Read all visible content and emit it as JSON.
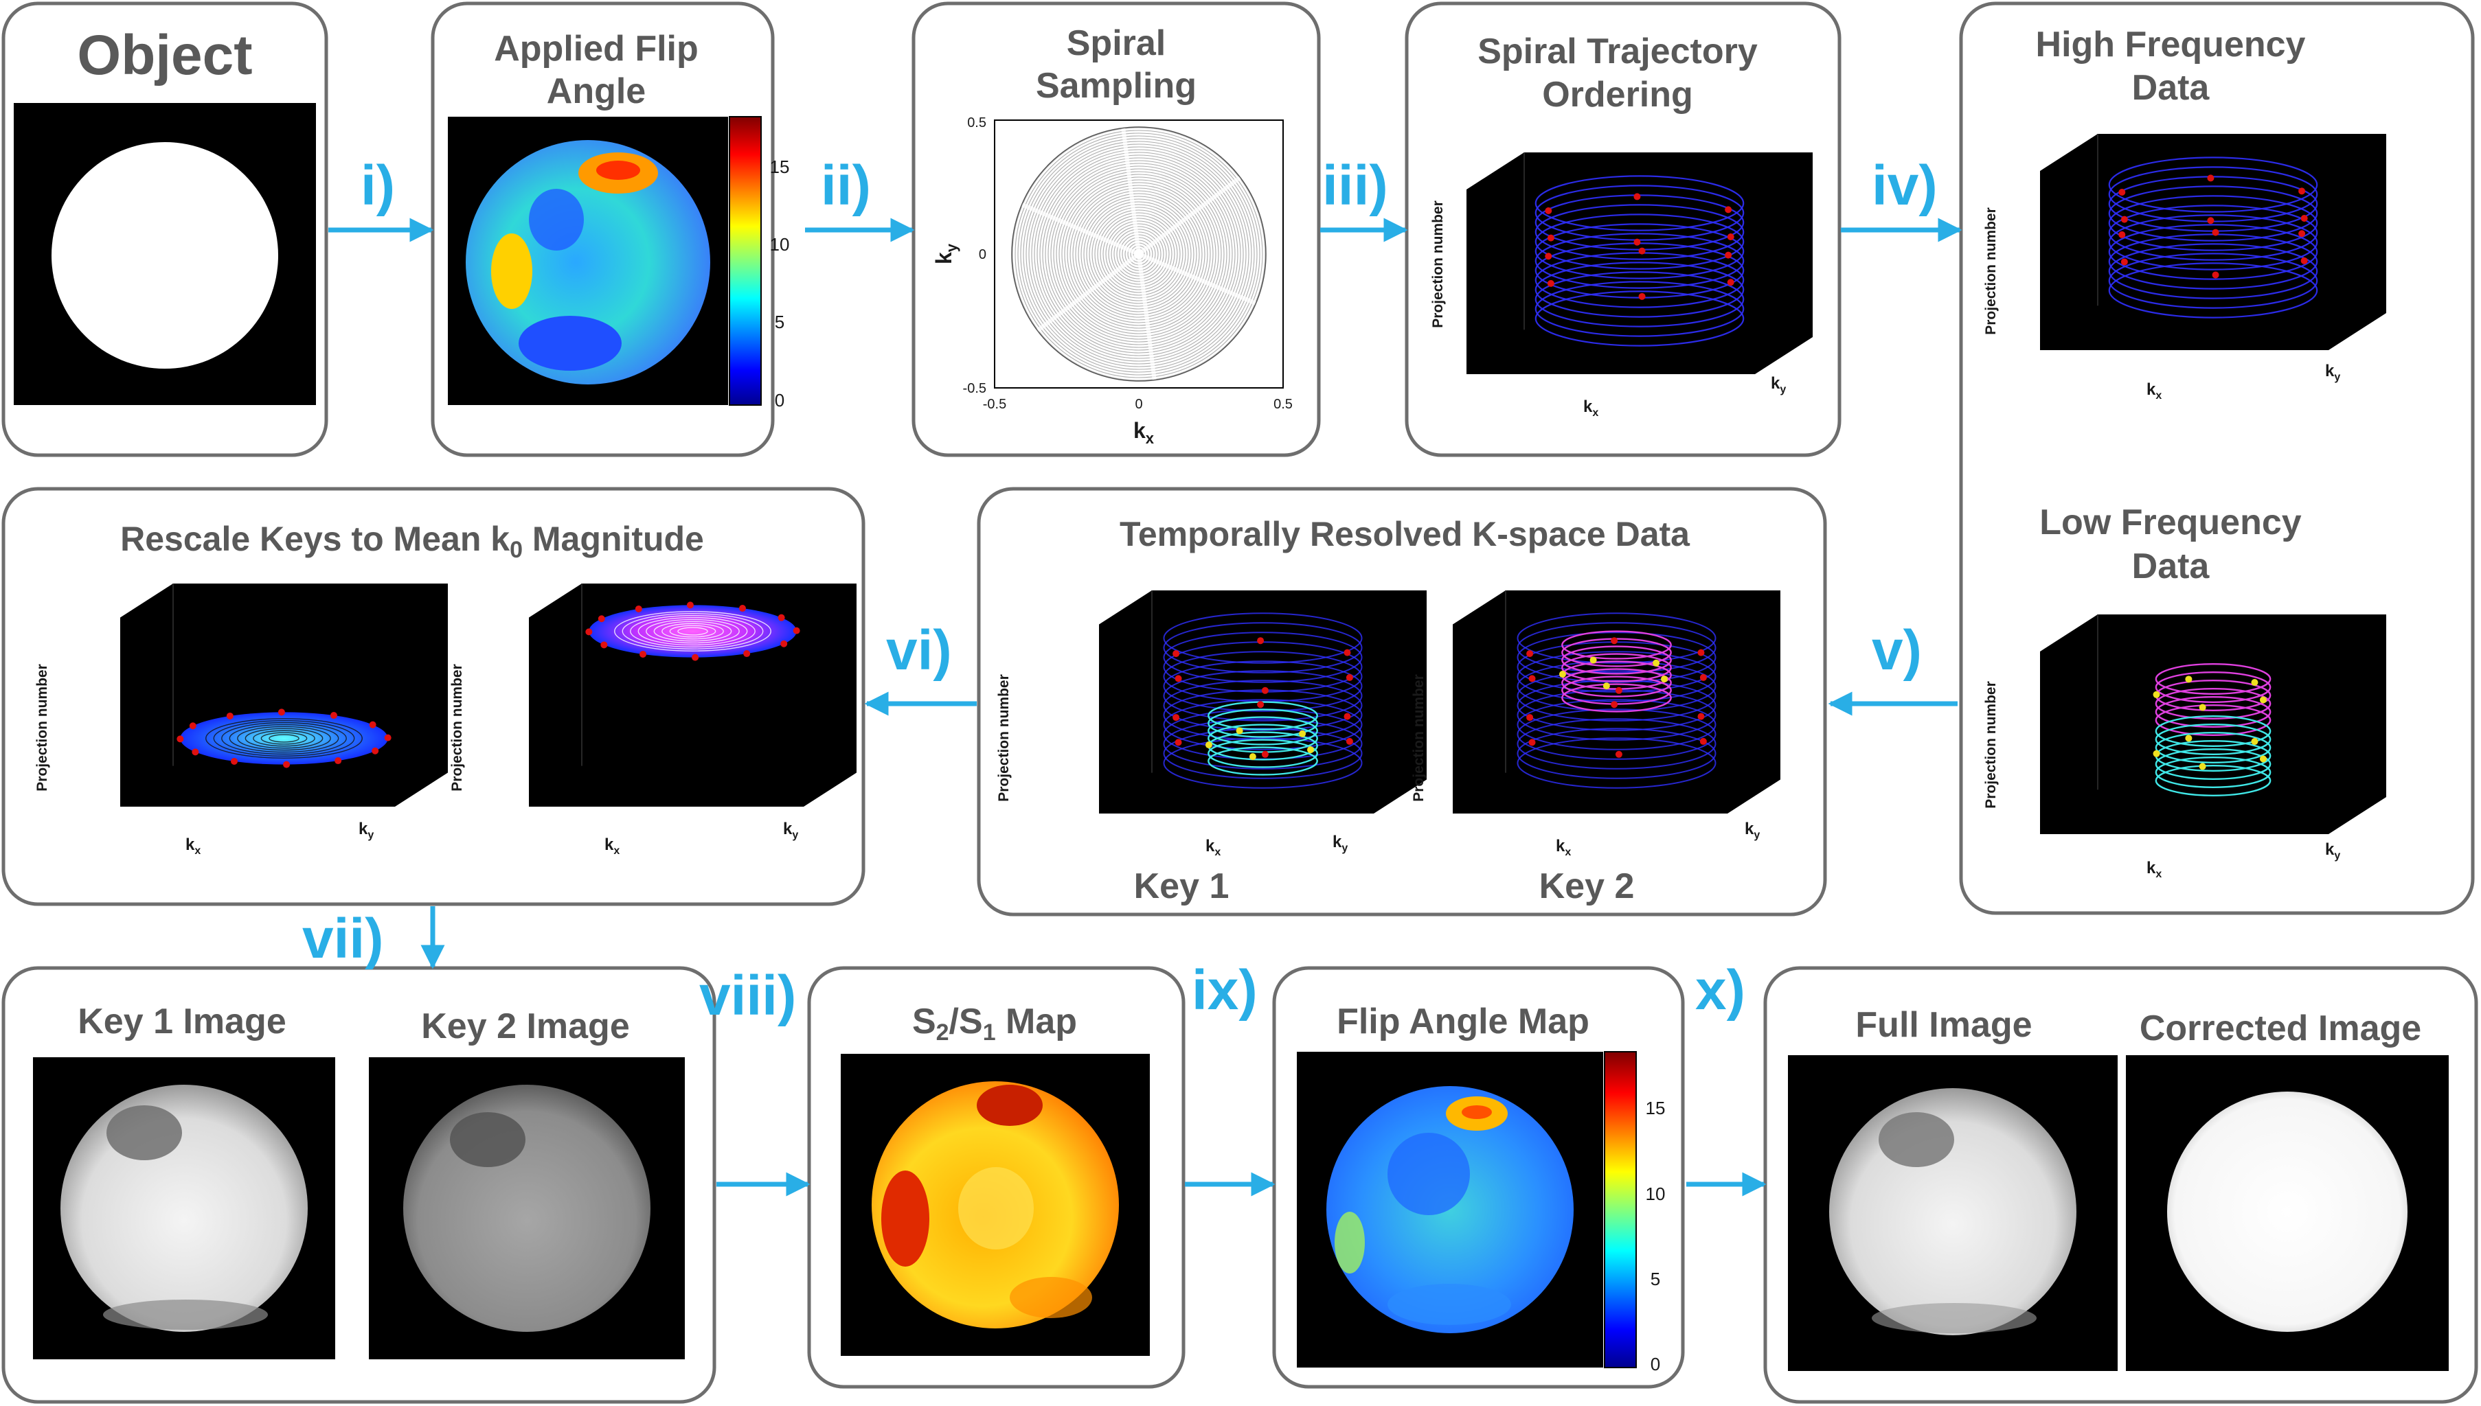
{
  "panels": {
    "object": {
      "title": "Object"
    },
    "applied_flip": {
      "title": [
        "Applied Flip",
        "Angle"
      ],
      "colorbar_ticks": [
        "0",
        "5",
        "10",
        "15"
      ]
    },
    "spiral_sampling": {
      "title": [
        "Spiral",
        "Sampling"
      ],
      "xlabel": "k",
      "xlabel_sub": "x",
      "ylabel": "k",
      "ylabel_sub": "y",
      "x_ticks": [
        "-0.5",
        "0",
        "0.5"
      ],
      "y_ticks": [
        "0.5",
        "0",
        "-0.5"
      ]
    },
    "spiral_ordering": {
      "title": [
        "Spiral Trajectory",
        "Ordering"
      ]
    },
    "high_freq": {
      "title": [
        "High Frequency",
        "Data"
      ]
    },
    "low_freq": {
      "title": [
        "Low Frequency",
        "Data"
      ]
    },
    "temporal": {
      "title": "Temporally Resolved K-space Data",
      "key1": "Key 1",
      "key2": "Key 2"
    },
    "rescale": {
      "title_pre": "Rescale Keys to Mean k",
      "title_sub": "0",
      "title_post": " Magnitude"
    },
    "key_images": {
      "key1_title": "Key 1 Image",
      "key2_title": "Key 2 Image"
    },
    "ratio_map": {
      "title_a": "S",
      "sub_a": "2",
      "title_b": "/S",
      "sub_b": "1",
      "title_c": " Map"
    },
    "flip_map": {
      "title": "Flip Angle Map",
      "colorbar_ticks": [
        "0",
        "5",
        "10",
        "15"
      ]
    },
    "final": {
      "full_title": "Full Image",
      "corrected_title": "Corrected Image"
    }
  },
  "axis_labels": {
    "projection": "Projection number",
    "kx": "k",
    "kx_sub": "x",
    "ky": "k",
    "ky_sub": "y"
  },
  "steps": [
    "i)",
    "ii)",
    "iii)",
    "iv)",
    "v)",
    "vi)",
    "vii)",
    "viii)",
    "ix)",
    "x)"
  ],
  "colors": {
    "step_blue": "#29aee6",
    "box_border": "#6e6e6e",
    "title_gray": "#595959",
    "spiral_blue": "#3030ff",
    "spiral_cyan": "#40e8e8",
    "spiral_magenta": "#e040e0",
    "marker_red": "#e01010",
    "marker_yellow": "#f0e020"
  }
}
